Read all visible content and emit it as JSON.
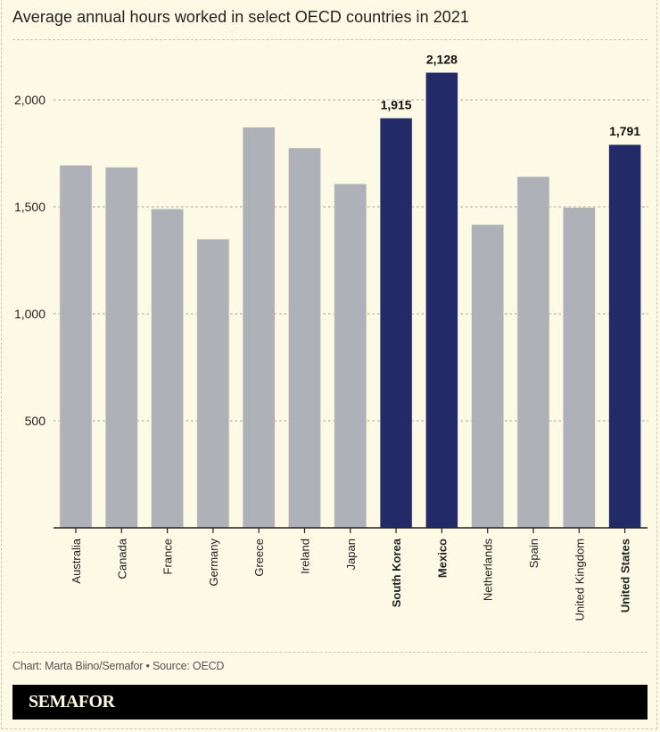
{
  "chart_data": {
    "type": "bar",
    "title": "Average annual hours worked in select OECD countries in 2021",
    "xlabel": "",
    "ylabel": "",
    "ylim": [
      0,
      2200
    ],
    "yticks": [
      500,
      1000,
      1500,
      2000
    ],
    "ytick_labels": [
      "500",
      "1,000",
      "1,500",
      "2,000"
    ],
    "grid": true,
    "categories": [
      "Australia",
      "Canada",
      "France",
      "Germany",
      "Greece",
      "Ireland",
      "Japan",
      "South Korea",
      "Mexico",
      "Netherlands",
      "Spain",
      "United Kingdom",
      "United States"
    ],
    "values": [
      1694,
      1685,
      1490,
      1349,
      1872,
      1775,
      1607,
      1915,
      2128,
      1417,
      1641,
      1497,
      1791
    ],
    "highlighted": [
      false,
      false,
      false,
      false,
      false,
      false,
      false,
      true,
      true,
      false,
      false,
      false,
      true
    ],
    "data_labels": [
      "",
      "",
      "",
      "",
      "",
      "",
      "",
      "1,915",
      "2,128",
      "",
      "",
      "",
      "1,791"
    ],
    "colors": {
      "default": "#AEB1B8",
      "highlight": "#222A68",
      "background": "#FCF9E4"
    }
  },
  "footer": {
    "credit": "Chart: Marta Biino/Semafor • Source: OECD",
    "brand": "SEMAFOR"
  }
}
